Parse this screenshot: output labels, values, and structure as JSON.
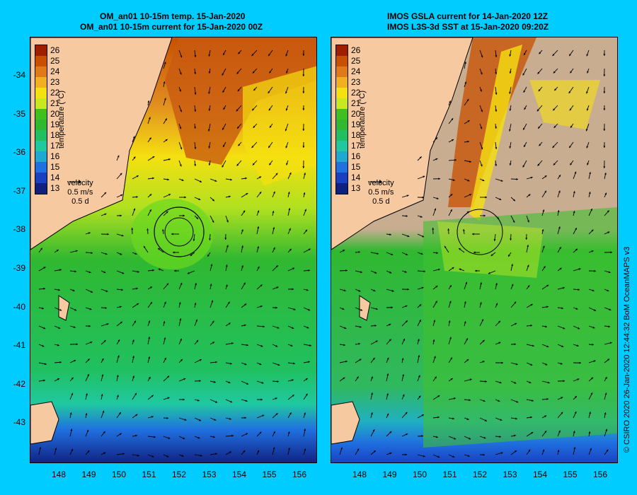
{
  "left_panel": {
    "title_line1": "OM_an01 10-15m temp. 15-Jan-2020",
    "title_line2": "OM_an01 10-15m current for 15-Jan-2020 00Z"
  },
  "right_panel": {
    "title_line1": "IMOS GSLA current for 14-Jan-2020 12Z",
    "title_line2": "IMOS L3S-3d SST at 15-Jan-2020 09:20Z"
  },
  "colorbar": {
    "labels": [
      "26",
      "25",
      "24",
      "23",
      "22",
      "21",
      "20",
      "19",
      "18",
      "17",
      "16",
      "15",
      "14",
      "13"
    ],
    "title": "temperature (°C)",
    "colors": [
      "#a01e00",
      "#c85000",
      "#e07a18",
      "#f0b020",
      "#f5e010",
      "#c8e820",
      "#40c020",
      "#30b830",
      "#20c060",
      "#20c8a0",
      "#20a8d0",
      "#2070e0",
      "#1840c0",
      "#102080"
    ]
  },
  "velocity_key": {
    "line1": "velocity",
    "line2": "0.5 m/s",
    "line3": "0.5 d"
  },
  "y_axis_labels": [
    "-34",
    "-35",
    "-36",
    "-37",
    "-38",
    "-39",
    "-40",
    "-41",
    "-42",
    "-43"
  ],
  "x_axis_labels": [
    "148",
    "149",
    "150",
    "151",
    "152",
    "153",
    "154",
    "155",
    "156"
  ],
  "credit": "© CSIRO 2020   26-Jan-2020 12:44:32 BoM OceanMAPS v3",
  "colors": {
    "background": "#00ccff",
    "land": "#f7c9a0",
    "cloud_mask": "#c8ad90"
  }
}
